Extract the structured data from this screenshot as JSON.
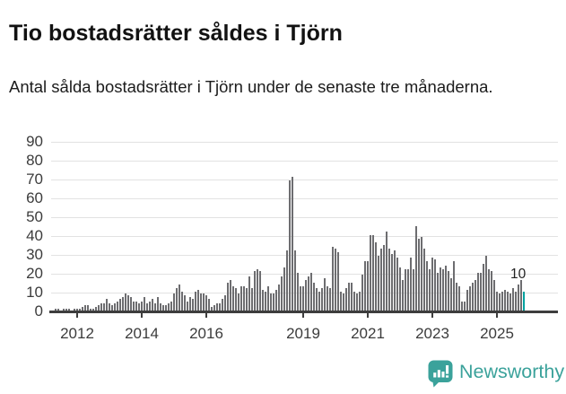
{
  "title": "Tio bostadsrätter såldes i Tjörn",
  "subtitle": "Antal sålda bostadsrätter i Tjörn under de senaste tre månaderna.",
  "chart_data": {
    "type": "bar",
    "title": "Tio bostadsrätter såldes i Tjörn",
    "xlabel": "",
    "ylabel": "",
    "ylim": [
      0,
      90
    ],
    "grid": true,
    "legend": "none",
    "yticks": [
      0,
      10,
      20,
      30,
      40,
      50,
      60,
      70,
      80,
      90
    ],
    "x_start_month": "2011-04",
    "x_end_month": "2025-11",
    "x_tick_labels": [
      "2012",
      "2014",
      "2016",
      "2019",
      "2021",
      "2023",
      "2025"
    ],
    "x_tick_month_index": [
      9,
      33,
      57,
      93,
      117,
      141,
      165
    ],
    "bar_color": "#6d6d70",
    "values": [
      0,
      1,
      1,
      0,
      1,
      1,
      1,
      0,
      1,
      1,
      1,
      2,
      3,
      3,
      1,
      1,
      2,
      3,
      4,
      4,
      6,
      4,
      3,
      4,
      5,
      6,
      7,
      9,
      8,
      7,
      5,
      5,
      4,
      5,
      7,
      4,
      5,
      6,
      4,
      7,
      4,
      3,
      3,
      4,
      5,
      9,
      12,
      14,
      10,
      8,
      5,
      7,
      6,
      10,
      11,
      9,
      9,
      8,
      6,
      2,
      3,
      4,
      4,
      6,
      8,
      15,
      16,
      13,
      12,
      9,
      13,
      13,
      12,
      18,
      12,
      21,
      22,
      21,
      11,
      10,
      13,
      9,
      9,
      11,
      14,
      18,
      23,
      32,
      69,
      71,
      32,
      20,
      13,
      13,
      16,
      18,
      20,
      15,
      12,
      10,
      12,
      17,
      13,
      12,
      34,
      33,
      31,
      10,
      9,
      12,
      15,
      15,
      10,
      9,
      10,
      19,
      26,
      26,
      40,
      40,
      36,
      29,
      33,
      35,
      42,
      33,
      30,
      32,
      28,
      23,
      16,
      22,
      22,
      28,
      22,
      45,
      38,
      39,
      33,
      26,
      22,
      28,
      27,
      20,
      23,
      22,
      24,
      21,
      17,
      26,
      15,
      13,
      5,
      5,
      11,
      13,
      15,
      16,
      20,
      20,
      25,
      29,
      22,
      21,
      16,
      10,
      9,
      10,
      11,
      10,
      9,
      12,
      10,
      14,
      16,
      10
    ],
    "highlight": {
      "index": 175,
      "value": 10,
      "label": "10",
      "color": "#00a2a0"
    }
  },
  "branding": {
    "logo_text": "Newsworthy",
    "logo_color": "#3ba29b",
    "logo_icon": "bar-chart-speech-bubble-icon"
  }
}
